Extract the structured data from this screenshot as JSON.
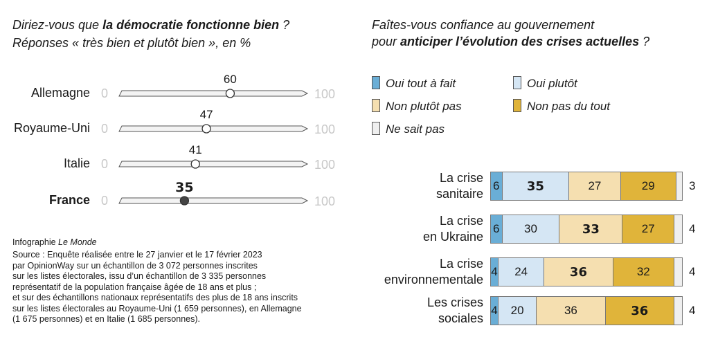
{
  "left": {
    "title_pre": "Diriez-vous que ",
    "title_bold": "la démocratie fonctionne bien",
    "title_post": " ?",
    "subtitle": "Réponses « très bien et plutôt bien », en %",
    "scale_min": "0",
    "scale_max": "100"
  },
  "right": {
    "title_line1": "Faîtes-vous confiance au gouvernement",
    "title_pre": "pour ",
    "title_bold": "anticiper l’évolution des crises actuelles",
    "title_post": " ?",
    "legend": [
      {
        "label": "Oui tout à fait",
        "color": "#6aaed6"
      },
      {
        "label": "Oui plutôt",
        "color": "#d5e6f4"
      },
      {
        "label": "Non plutôt pas",
        "color": "#f5dfb0"
      },
      {
        "label": "Non pas du tout",
        "color": "#e0b43a"
      },
      {
        "label": "Ne sait pas",
        "color": "#efefef"
      }
    ]
  },
  "credit": {
    "line_pre": "Infographie ",
    "line_italic": "Le Monde",
    "source": [
      "Source : Enquête réalisée entre le 27 janvier et le 17 février 2023",
      "par OpinionWay sur un échantillon de 3 072 personnes inscrites",
      "sur les listes électorales, issu d’un échantillon de 3 335 personnes",
      "représentatif de la population française âgée de 18 ans et plus ;",
      "et sur des échantillons nationaux représentatifs des plus de 18 ans inscrits",
      "sur les listes électorales au Royaume-Uni (1 659 personnes), en Allemagne",
      "(1 675 personnes) et en Italie (1 685 personnes)."
    ]
  },
  "chart_data": [
    {
      "type": "scatter",
      "categories": [
        "Allemagne",
        "Royaume-Uni",
        "Italie",
        "France"
      ],
      "values": [
        60,
        47,
        41,
        35
      ],
      "highlight": "France",
      "xlim": [
        0,
        100
      ]
    },
    {
      "type": "bar",
      "stacked": true,
      "orientation": "horizontal",
      "categories": [
        "La crise\nsanitaire",
        "La crise\nen Ukraine",
        "La crise\nenvironnementale",
        "Les crises\nsociales"
      ],
      "series": [
        {
          "name": "Oui tout à fait",
          "values": [
            6,
            6,
            4,
            4
          ]
        },
        {
          "name": "Oui plutôt",
          "values": [
            35,
            30,
            24,
            20
          ]
        },
        {
          "name": "Non plutôt pas",
          "values": [
            27,
            33,
            36,
            36
          ]
        },
        {
          "name": "Non pas du tout",
          "values": [
            29,
            27,
            32,
            36
          ]
        },
        {
          "name": "Ne sait pas",
          "values": [
            3,
            4,
            4,
            4
          ]
        }
      ],
      "bold_series_index": [
        1,
        2,
        2,
        3
      ]
    }
  ]
}
